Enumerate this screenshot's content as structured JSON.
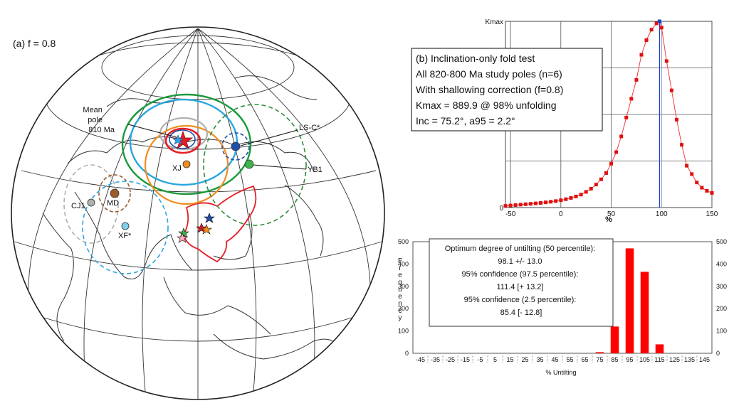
{
  "globe": {
    "panel_label": "(a) f = 0.8",
    "mean_pole_label": [
      "Mean",
      "pole",
      "810 Ma"
    ],
    "site_labels": {
      "lsc": "LS-C*",
      "yb1": "YB1",
      "xj": "XJ",
      "cj1": "CJ1",
      "md": "MD",
      "xf": "XF*"
    },
    "colors": {
      "green": "#1a9a3a",
      "cyan": "#2aa6df",
      "orange": "#f28c1e",
      "red": "#e41e26",
      "blue": "#1f4fa8",
      "gray": "#b0b0b0",
      "brown": "#9a5b2d",
      "lightblue": "#7fd0e6",
      "darkgreen": "#2e8b3a",
      "coast": "#333333"
    }
  },
  "chart_data": [
    {
      "type": "line",
      "id": "kappa-vs-unfolding",
      "title_box": [
        "(b) Inclination-only fold test",
        "All 820-800 Ma study poles (n=6)",
        "With shallowing correction (f=0.8)",
        "Kmax = 889.9 @ 98% unfolding",
        "Inc =  75.2°, a95 = 2.2°"
      ],
      "xlabel": "%",
      "ylabel_top": "Kmax",
      "y_zero_label": "0",
      "xlim": [
        -55,
        150
      ],
      "ylim": [
        0,
        889.9
      ],
      "xticks": [
        -50,
        0,
        50,
        100,
        150
      ],
      "grid": true,
      "line_color": "#f23c3c",
      "marker_color": "#e01010",
      "max_marker_color": "#1f3fbf",
      "vline_x": 98,
      "x": [
        -55,
        -50,
        -45,
        -40,
        -35,
        -30,
        -25,
        -20,
        -15,
        -10,
        -5,
        0,
        5,
        10,
        15,
        20,
        25,
        30,
        35,
        40,
        45,
        50,
        55,
        60,
        65,
        70,
        75,
        80,
        85,
        90,
        95,
        98,
        100,
        105,
        110,
        115,
        120,
        125,
        130,
        135,
        140,
        145,
        150
      ],
      "y": [
        8,
        10,
        12,
        14,
        16,
        18,
        20,
        22,
        25,
        28,
        31,
        35,
        40,
        46,
        53,
        62,
        75,
        90,
        110,
        135,
        165,
        210,
        265,
        340,
        430,
        520,
        610,
        730,
        800,
        850,
        880,
        889.9,
        860,
        700,
        560,
        420,
        300,
        200,
        160,
        120,
        95,
        80,
        70
      ]
    },
    {
      "type": "bar",
      "id": "untilting-histogram",
      "categories": [
        "-45",
        "-35",
        "-25",
        "-15",
        "-5",
        "5",
        "15",
        "25",
        "35",
        "45",
        "55",
        "65",
        "75",
        "85",
        "95",
        "105",
        "115",
        "125",
        "135",
        "145"
      ],
      "values": [
        0,
        0,
        0,
        0,
        0,
        0,
        0,
        0,
        0,
        0,
        0,
        0,
        5,
        120,
        470,
        365,
        40,
        0,
        0,
        0
      ],
      "xlabel": "% Untilting",
      "ylabel": "Frequency",
      "ylim": [
        0,
        500
      ],
      "yticks": [
        0,
        100,
        200,
        300,
        400,
        500
      ],
      "bar_color": "#ff0000",
      "textbox": [
        "Optimum degree of untilting (50 percentile):",
        "98.1 +/- 13.0",
        "95% confidence (97.5 percentile):",
        "111.4 [+ 13.2]",
        "95% confidence (2.5 percentile):",
        "85.4 [- 12.8]"
      ]
    }
  ]
}
